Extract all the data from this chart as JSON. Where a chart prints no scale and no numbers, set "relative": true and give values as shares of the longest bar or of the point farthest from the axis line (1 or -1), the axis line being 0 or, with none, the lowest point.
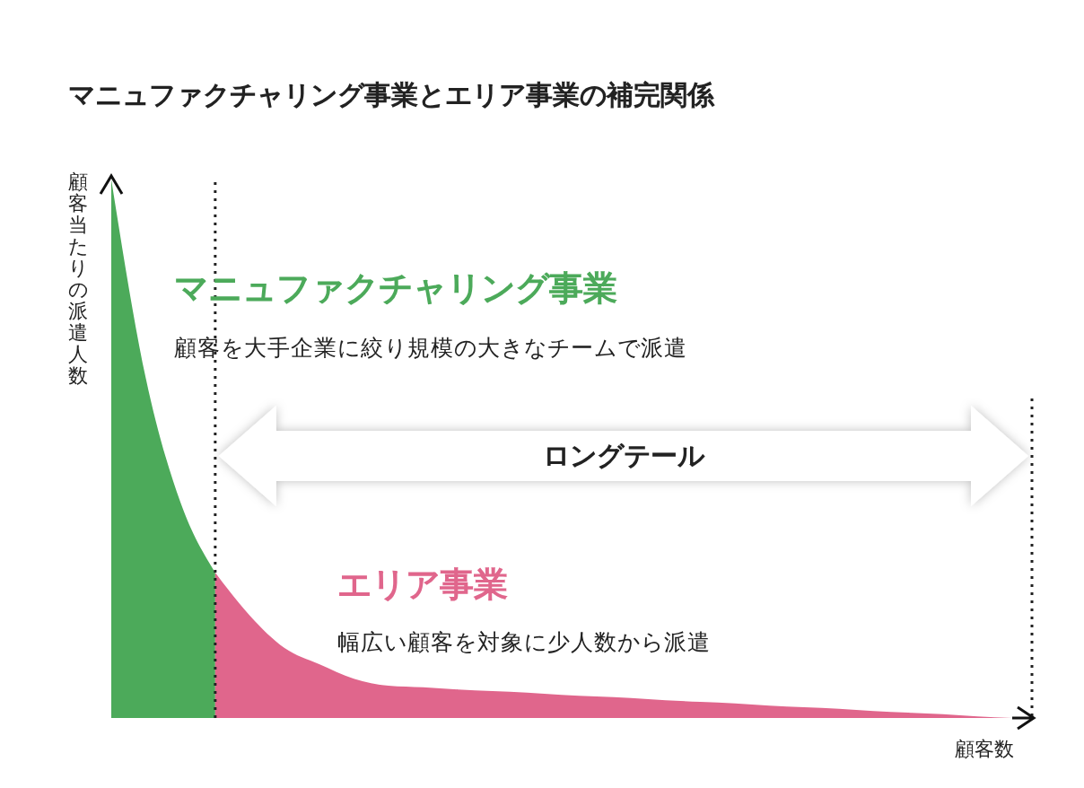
{
  "chart_data": {
    "type": "area",
    "title": "マニュファクチャリング事業とエリア事業の補完関係",
    "xlabel": "顧客数",
    "ylabel": "顧客当たりの派遣人数",
    "relative": true,
    "categories": [
      null,
      null,
      null,
      null,
      null,
      null,
      null,
      null,
      null,
      null,
      null,
      null,
      null,
      null,
      null,
      null,
      null,
      null,
      null,
      null,
      null,
      null,
      null,
      null,
      null,
      null,
      null
    ],
    "series": [
      {
        "name": "マニュファクチャリング事業",
        "color": "#4caa5a",
        "values": [
          1,
          0.63,
          0.4,
          0.27,
          null,
          null,
          null,
          null,
          null,
          null,
          null,
          null,
          null,
          null,
          null,
          null,
          null,
          null,
          null,
          null,
          null,
          null,
          null,
          null,
          null,
          null,
          null
        ]
      },
      {
        "name": "エリア事業",
        "color": "#e0668c",
        "values": [
          null,
          null,
          null,
          0.27,
          0.19,
          0.13,
          0.1,
          0.073,
          0.06,
          0.057,
          0.053,
          0.05,
          0.047,
          0.043,
          0.04,
          0.037,
          0.033,
          0.03,
          0.027,
          0.023,
          0.02,
          0.017,
          0.013,
          0.01,
          0.007,
          0.003,
          0
        ]
      }
    ],
    "annotations": [
      "顧客を大手企業に絞り規模の大きなチームで派遣",
      "幅広い顧客を対象に少人数から派遣",
      "ロングテール"
    ]
  }
}
